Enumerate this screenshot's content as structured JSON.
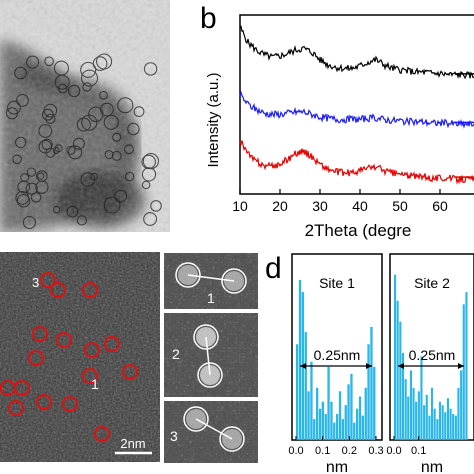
{
  "panels": {
    "b": {
      "letter": "b",
      "ylabel": "Intensity (a.u.)",
      "xlabel": "2Theta (degre",
      "xticks": [
        "10",
        "20",
        "30",
        "40",
        "50",
        "60"
      ],
      "series_colors": [
        "#000000",
        "#1a1aff",
        "#e60000"
      ]
    },
    "c": {
      "site_labels": [
        "1",
        "3"
      ],
      "inset_labels": [
        "1",
        "2",
        "3"
      ],
      "scalebar_label": "2nm"
    },
    "d": {
      "letter": "d",
      "subpanels": [
        {
          "title": "Site 1",
          "distance_label": "0.25nm",
          "xticks": [
            "0.0",
            "0.1",
            "0.2",
            "0.3"
          ]
        },
        {
          "title": "Site 2",
          "distance_label": "0.25nm",
          "xticks": [
            "0.0",
            "0.1"
          ]
        }
      ],
      "xlabel": "nm",
      "bar_color": "#29b6e8"
    }
  },
  "chart_data": [
    {
      "type": "line",
      "xlabel": "2Theta (degre",
      "ylabel": "Intensity (a.u.)",
      "xlim": [
        10,
        70
      ],
      "series": [
        {
          "x": [
            10,
            12,
            14,
            16,
            18,
            20,
            22,
            24,
            26,
            28,
            30,
            32,
            34,
            36,
            38,
            40,
            42,
            44,
            46,
            48,
            50,
            52,
            54,
            56,
            58,
            60,
            62,
            64,
            66,
            68,
            70
          ],
          "values": [
            9.5,
            8.9,
            8.6,
            8.4,
            8.3,
            8.35,
            8.45,
            8.6,
            8.65,
            8.5,
            8.2,
            8.0,
            7.9,
            7.85,
            7.85,
            7.95,
            8.1,
            8.2,
            8.0,
            7.85,
            7.8,
            7.75,
            7.7,
            7.7,
            7.65,
            7.65,
            7.6,
            7.6,
            7.6,
            7.55,
            7.55
          ]
        },
        {
          "x": [
            10,
            12,
            14,
            16,
            18,
            20,
            22,
            24,
            26,
            28,
            30,
            32,
            34,
            36,
            38,
            40,
            42,
            44,
            46,
            48,
            50,
            52,
            54,
            56,
            58,
            60,
            62,
            64,
            66,
            68,
            70
          ],
          "values": [
            6.8,
            6.4,
            6.2,
            6.05,
            6.0,
            6.0,
            6.05,
            6.1,
            6.1,
            6.0,
            5.9,
            5.85,
            5.8,
            5.8,
            5.8,
            5.8,
            5.85,
            5.85,
            5.8,
            5.75,
            5.75,
            5.7,
            5.7,
            5.7,
            5.65,
            5.65,
            5.65,
            5.6,
            5.6,
            5.6,
            5.6
          ]
        },
        {
          "x": [
            10,
            12,
            14,
            16,
            18,
            20,
            22,
            24,
            26,
            28,
            30,
            32,
            34,
            36,
            38,
            40,
            42,
            44,
            46,
            48,
            50,
            52,
            54,
            56,
            58,
            60,
            62,
            64,
            66,
            68,
            70
          ],
          "values": [
            5.0,
            4.4,
            4.1,
            3.95,
            3.9,
            4.0,
            4.2,
            4.45,
            4.5,
            4.3,
            4.0,
            3.8,
            3.7,
            3.65,
            3.65,
            3.75,
            3.85,
            3.9,
            3.75,
            3.65,
            3.6,
            3.55,
            3.5,
            3.5,
            3.45,
            3.45,
            3.45,
            3.4,
            3.4,
            3.4,
            3.4
          ]
        }
      ]
    },
    {
      "type": "bar",
      "title": "Site 1",
      "xlabel": "nm",
      "xlim": [
        0,
        0.3
      ],
      "x": [
        0.0,
        0.01,
        0.02,
        0.03,
        0.04,
        0.05,
        0.06,
        0.07,
        0.08,
        0.09,
        0.1,
        0.11,
        0.12,
        0.13,
        0.14,
        0.15,
        0.16,
        0.17,
        0.18,
        0.19,
        0.2,
        0.21,
        0.22,
        0.23,
        0.24,
        0.25,
        0.26,
        0.27
      ],
      "values": [
        0.55,
        0.92,
        0.85,
        0.62,
        0.28,
        0.45,
        0.12,
        0.3,
        0.18,
        0.22,
        0.15,
        0.42,
        0.22,
        0.1,
        0.15,
        0.28,
        0.12,
        0.2,
        0.32,
        0.38,
        0.1,
        0.18,
        0.25,
        0.14,
        0.3,
        0.55,
        0.65,
        0.42
      ]
    },
    {
      "type": "bar",
      "title": "Site 2",
      "xlabel": "nm",
      "x": [
        0.0,
        0.01,
        0.02,
        0.03,
        0.04,
        0.05,
        0.06,
        0.07,
        0.08,
        0.09,
        0.1,
        0.11,
        0.12,
        0.13,
        0.14,
        0.15,
        0.16,
        0.17,
        0.18,
        0.19,
        0.2,
        0.21,
        0.22,
        0.23,
        0.24,
        0.25,
        0.26,
        0.27
      ],
      "values": [
        0.95,
        0.8,
        0.68,
        0.5,
        0.35,
        0.25,
        0.4,
        0.3,
        0.22,
        0.28,
        0.48,
        0.2,
        0.26,
        0.14,
        0.3,
        0.18,
        0.12,
        0.22,
        0.2,
        0.16,
        0.24,
        0.18,
        0.15,
        0.14,
        0.3,
        0.4,
        0.78,
        0.85
      ]
    }
  ]
}
